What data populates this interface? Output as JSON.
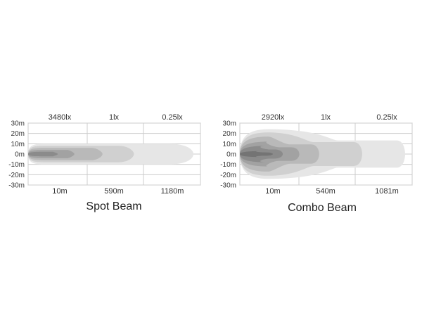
{
  "chart_data": [
    {
      "type": "area",
      "title": "Spot Beam",
      "illuminance_labels": [
        "3480lx",
        "1lx",
        "0.25lx"
      ],
      "distance_labels": [
        "10m",
        "590m",
        "1180m"
      ],
      "y_ticks": [
        "30m",
        "20m",
        "10m",
        "0m",
        "-10m",
        "-20m",
        "-30m"
      ],
      "ylim": [
        -30,
        30
      ],
      "grid": true,
      "zones": [
        {
          "level": 1,
          "color": "#e6e6e6",
          "reach": 1.0,
          "half_width_m": 10
        },
        {
          "level": 2,
          "color": "#d0d0d0",
          "reach": 0.64,
          "half_width_m": 8
        },
        {
          "level": 3,
          "color": "#b9b9b9",
          "reach": 0.45,
          "half_width_m": 6
        },
        {
          "level": 4,
          "color": "#a2a2a2",
          "reach": 0.28,
          "half_width_m": 4
        },
        {
          "level": 5,
          "color": "#8b8b8b",
          "reach": 0.18,
          "half_width_m": 2.2
        }
      ]
    },
    {
      "type": "area",
      "title": "Combo Beam",
      "illuminance_labels": [
        "2920lx",
        "1lx",
        "0.25lx"
      ],
      "distance_labels": [
        "10m",
        "540m",
        "1081m"
      ],
      "y_ticks": [
        "30m",
        "20m",
        "10m",
        "0m",
        "-10m",
        "-20m",
        "-30m"
      ],
      "ylim": [
        -30,
        30
      ],
      "grid": true,
      "zones": [
        {
          "level": 1,
          "color": "#e6e6e6",
          "reach": 1.0,
          "half_width_m": 24
        },
        {
          "level": 2,
          "color": "#d0d0d0",
          "reach": 0.74,
          "half_width_m": 21
        },
        {
          "level": 3,
          "color": "#b9b9b9",
          "reach": 0.48,
          "half_width_m": 17
        },
        {
          "level": 4,
          "color": "#a2a2a2",
          "reach": 0.36,
          "half_width_m": 12
        },
        {
          "level": 5,
          "color": "#8b8b8b",
          "reach": 0.26,
          "half_width_m": 8
        },
        {
          "level": 6,
          "color": "#747474",
          "reach": 0.2,
          "half_width_m": 3
        }
      ]
    }
  ]
}
